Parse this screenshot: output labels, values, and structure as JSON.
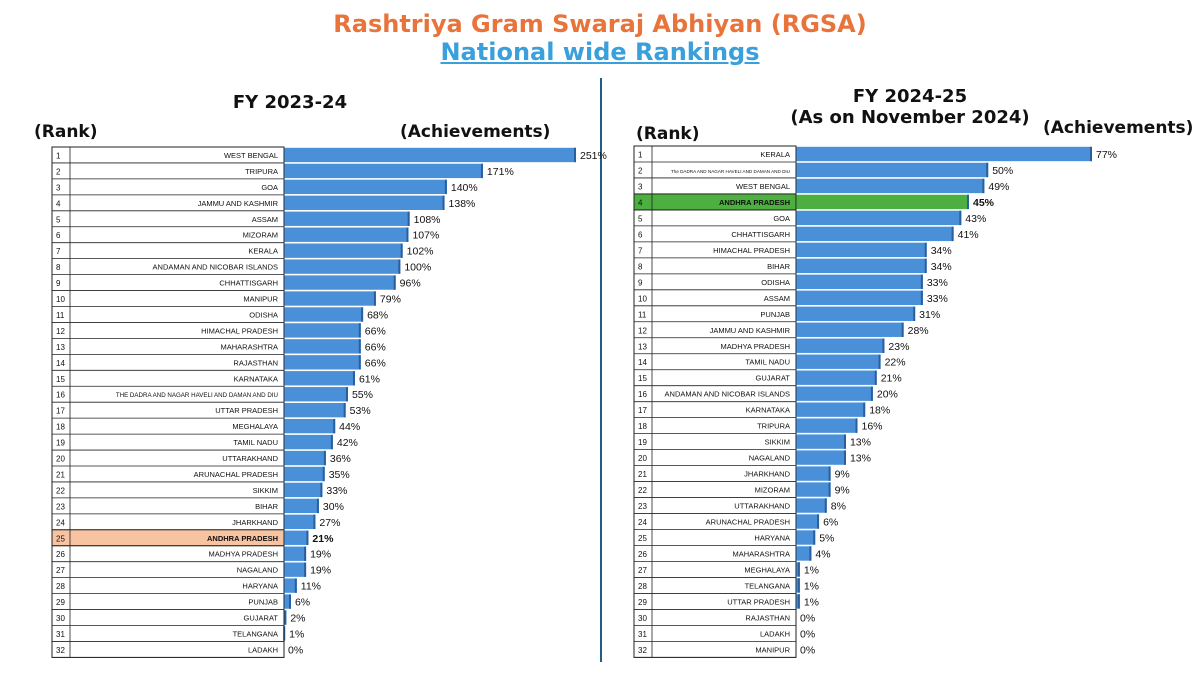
{
  "header": {
    "title": "Rashtriya Gram Swaraj Abhiyan (RGSA)",
    "subtitle": "National wide Rankings"
  },
  "colors": {
    "bar": "#4a90d9",
    "highlight_left": "#f7c3a1",
    "highlight_right": "#4caf3f",
    "title": "#e8743b",
    "subtitle": "#3aa0dc"
  },
  "chart_data": [
    {
      "type": "bar",
      "orientation": "horizontal",
      "title": "FY 2023-24",
      "title_line2": "",
      "rank_label": "(Rank)",
      "value_label": "(Achievements)",
      "unit": "%",
      "highlight": "ANDHRA PRADESH",
      "xlim": [
        0,
        251
      ],
      "ranks": [
        1,
        2,
        3,
        4,
        5,
        6,
        7,
        8,
        9,
        10,
        11,
        12,
        13,
        14,
        15,
        16,
        17,
        18,
        19,
        20,
        21,
        22,
        23,
        24,
        25,
        26,
        27,
        28,
        29,
        30,
        31,
        32
      ],
      "categories": [
        "WEST BENGAL",
        "TRIPURA",
        "GOA",
        "JAMMU AND KASHMIR",
        "ASSAM",
        "MIZORAM",
        "KERALA",
        "ANDAMAN AND NICOBAR ISLANDS",
        "CHHATTISGARH",
        "MANIPUR",
        "ODISHA",
        "HIMACHAL PRADESH",
        "MAHARASHTRA",
        "RAJASTHAN",
        "KARNATAKA",
        "THE DADRA AND NAGAR HAVELI AND DAMAN AND DIU",
        "UTTAR PRADESH",
        "MEGHALAYA",
        "TAMIL NADU",
        "UTTARAKHAND",
        "ARUNACHAL PRADESH",
        "SIKKIM",
        "BIHAR",
        "JHARKHAND",
        "ANDHRA PRADESH",
        "MADHYA PRADESH",
        "NAGALAND",
        "HARYANA",
        "PUNJAB",
        "GUJARAT",
        "TELANGANA",
        "LADAKH"
      ],
      "values": [
        251,
        171,
        140,
        138,
        108,
        107,
        102,
        100,
        96,
        79,
        68,
        66,
        66,
        66,
        61,
        55,
        53,
        44,
        42,
        36,
        35,
        33,
        30,
        27,
        21,
        19,
        19,
        11,
        6,
        2,
        1,
        0
      ]
    },
    {
      "type": "bar",
      "orientation": "horizontal",
      "title": "FY 2024-25",
      "title_line2": "(As on November 2024)",
      "rank_label": "(Rank)",
      "value_label": "(Achievements)",
      "unit": "%",
      "highlight": "ANDHRA PRADESH",
      "xlim": [
        0,
        77
      ],
      "ranks": [
        1,
        2,
        3,
        4,
        5,
        6,
        7,
        8,
        9,
        10,
        11,
        12,
        13,
        14,
        15,
        16,
        17,
        18,
        19,
        20,
        21,
        22,
        23,
        24,
        25,
        26,
        27,
        28,
        29,
        30,
        31,
        32
      ],
      "categories": [
        "KERALA",
        "The DADRA AND NAGAR HAVELI AND DAMAN AND DIU",
        "WEST BENGAL",
        "ANDHRA PRADESH",
        "GOA",
        "CHHATTISGARH",
        "HIMACHAL PRADESH",
        "BIHAR",
        "ODISHA",
        "ASSAM",
        "PUNJAB",
        "JAMMU AND KASHMIR",
        "MADHYA PRADESH",
        "TAMIL NADU",
        "GUJARAT",
        "ANDAMAN AND NICOBAR ISLANDS",
        "KARNATAKA",
        "TRIPURA",
        "SIKKIM",
        "NAGALAND",
        "JHARKHAND",
        "MIZORAM",
        "UTTARAKHAND",
        "ARUNACHAL PRADESH",
        "HARYANA",
        "MAHARASHTRA",
        "MEGHALAYA",
        "TELANGANA",
        "UTTAR PRADESH",
        "RAJASTHAN",
        "LADAKH",
        "MANIPUR"
      ],
      "values": [
        77,
        50,
        49,
        45,
        43,
        41,
        34,
        34,
        33,
        33,
        31,
        28,
        23,
        22,
        21,
        20,
        18,
        16,
        13,
        13,
        9,
        9,
        8,
        6,
        5,
        4,
        1,
        1,
        1,
        0,
        0,
        0
      ]
    }
  ]
}
